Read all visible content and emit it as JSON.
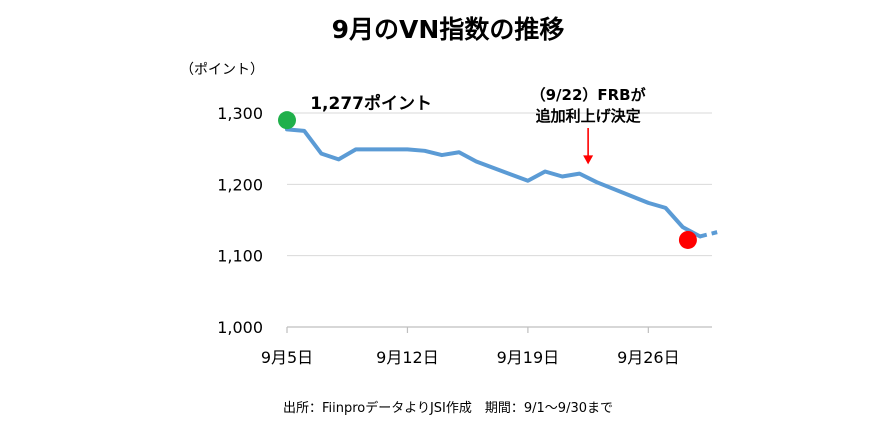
{
  "chart_data": {
    "type": "line",
    "title": "9月のVN指数の推移",
    "ylabel": "（ポイント）",
    "xlabel": "",
    "source": "出所：FiinproデータよりJSI作成　期間：9/1～9/30まで",
    "ylim": [
      1000,
      1300
    ],
    "yticks": [
      1000,
      1100,
      1200,
      1300
    ],
    "ytick_labels": [
      "1,000",
      "1,100",
      "1,200",
      "1,300"
    ],
    "xlim": [
      5,
      29.7
    ],
    "xticks": [
      5,
      12,
      19,
      26
    ],
    "xtick_labels": [
      "9月5日",
      "9月12日",
      "9月19日",
      "9月26日"
    ],
    "grid": true,
    "line_color": "#5b9bd5",
    "series": [
      {
        "name": "",
        "solid": [
          {
            "x": 5,
            "y": 1277
          },
          {
            "x": 6,
            "y": 1275
          },
          {
            "x": 7,
            "y": 1243
          },
          {
            "x": 8,
            "y": 1235
          },
          {
            "x": 9,
            "y": 1249
          },
          {
            "x": 12,
            "y": 1249
          },
          {
            "x": 13,
            "y": 1247
          },
          {
            "x": 14,
            "y": 1241
          },
          {
            "x": 15,
            "y": 1245
          },
          {
            "x": 16,
            "y": 1232
          },
          {
            "x": 19,
            "y": 1205
          },
          {
            "x": 20,
            "y": 1218
          },
          {
            "x": 21,
            "y": 1211
          },
          {
            "x": 22,
            "y": 1215
          },
          {
            "x": 23,
            "y": 1203
          },
          {
            "x": 26,
            "y": 1174
          },
          {
            "x": 27,
            "y": 1167
          },
          {
            "x": 28,
            "y": 1140
          },
          {
            "x": 29,
            "y": 1127
          }
        ],
        "dashed": [
          {
            "x": 29,
            "y": 1127
          },
          {
            "x": 29.5,
            "y": 1130
          },
          {
            "x": 30,
            "y": 1133
          }
        ]
      }
    ],
    "markers": [
      {
        "x": 5,
        "y": 1290,
        "color": "#20b04b"
      },
      {
        "x": 28.3,
        "y": 1122,
        "color": "#ff0000"
      }
    ],
    "annotations": [
      {
        "text": "1,277ポイント",
        "x": 6,
        "y": 1289
      },
      {
        "lines": [
          "（9/22）FRBが",
          "追加利上げ決定"
        ],
        "x": 22.5,
        "y": 1290,
        "arrow_to": {
          "x": 22.5,
          "y": 1228
        },
        "arrow_color": "#ff0000"
      }
    ]
  }
}
